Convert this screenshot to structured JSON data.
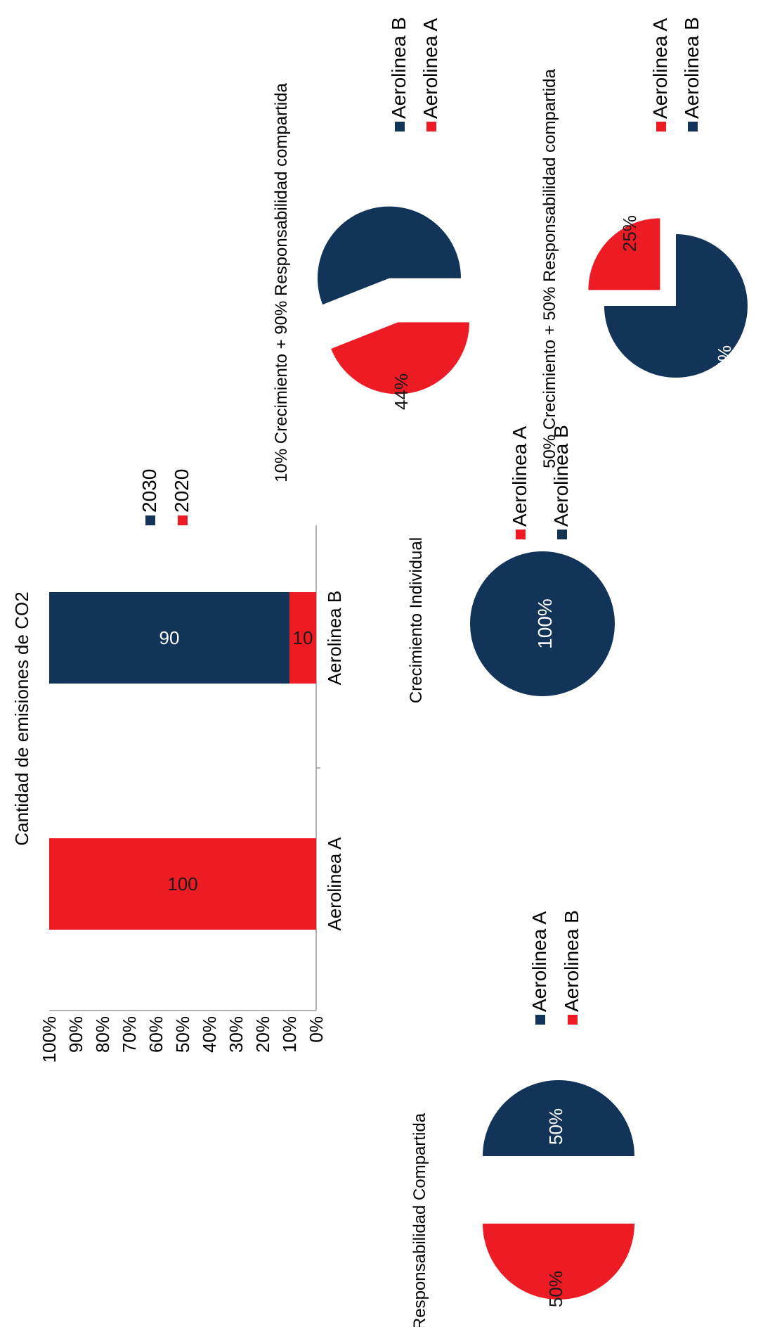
{
  "colors": {
    "red": "#ed1c24",
    "navy": "#133459",
    "axis": "#999999",
    "text": "#000000",
    "label_dark": "#1a1a1a",
    "label_light": "#ffffff"
  },
  "chart_data": [
    {
      "type": "bar",
      "title": "Cantidad de emisiones de CO2",
      "stacked": true,
      "categories": [
        "Aerolinea A",
        "Aerolinea B"
      ],
      "series": [
        {
          "name": "2020",
          "color": "#ed1c24",
          "values": [
            100,
            10
          ]
        },
        {
          "name": "2030",
          "color": "#133459",
          "values": [
            0,
            90
          ]
        }
      ],
      "ylim": [
        0,
        100
      ],
      "yticks": [
        "0%",
        "10%",
        "20%",
        "30%",
        "40%",
        "50%",
        "60%",
        "70%",
        "80%",
        "90%",
        "100%"
      ],
      "data_labels": [
        "100",
        "10",
        "90"
      ],
      "legend": [
        {
          "name": "2030",
          "color": "#133459"
        },
        {
          "name": "2020",
          "color": "#ed1c24"
        }
      ]
    },
    {
      "type": "pie",
      "title": "Responsabilidad Compartida",
      "slices": [
        {
          "name": "Aerolinea B",
          "value": 50,
          "label": "50%",
          "color": "#ed1c24"
        },
        {
          "name": "Aerolinea A",
          "value": 50,
          "label": "50%",
          "color": "#133459"
        }
      ],
      "legend": [
        {
          "name": "Aerolinea A",
          "color": "#133459"
        },
        {
          "name": "Aerolinea B",
          "color": "#ed1c24"
        }
      ]
    },
    {
      "type": "pie",
      "title": "Crecimiento Individual",
      "slices": [
        {
          "name": "Aerolinea B",
          "value": 100,
          "label": "100%",
          "color": "#133459"
        },
        {
          "name": "Aerolinea A",
          "value": 0,
          "label": "",
          "color": "#ed1c24"
        }
      ],
      "legend": [
        {
          "name": "Aerolinea A",
          "color": "#ed1c24"
        },
        {
          "name": "Aerolinea B",
          "color": "#133459"
        }
      ]
    },
    {
      "type": "pie",
      "title": "10% Crecimiento + 90% Responsabilidad compartida",
      "slices": [
        {
          "name": "Aerolinea A",
          "value": 44,
          "label": "44%",
          "color": "#ed1c24"
        },
        {
          "name": "Aerolinea B",
          "value": 56,
          "label": "56%",
          "color": "#133459"
        }
      ],
      "legend": [
        {
          "name": "Aerolinea B",
          "color": "#133459"
        },
        {
          "name": "Aerolinea A",
          "color": "#ed1c24"
        }
      ]
    },
    {
      "type": "pie",
      "title": "50% Crecimiento + 50% Responsabilidad compartida",
      "slices": [
        {
          "name": "Aerolinea A",
          "value": 25,
          "label": "25%",
          "color": "#ed1c24"
        },
        {
          "name": "Aerolinea B",
          "value": 75,
          "label": "75%",
          "color": "#133459"
        }
      ],
      "legend": [
        {
          "name": "Aerolinea A",
          "color": "#ed1c24"
        },
        {
          "name": "Aerolinea B",
          "color": "#133459"
        }
      ]
    }
  ]
}
